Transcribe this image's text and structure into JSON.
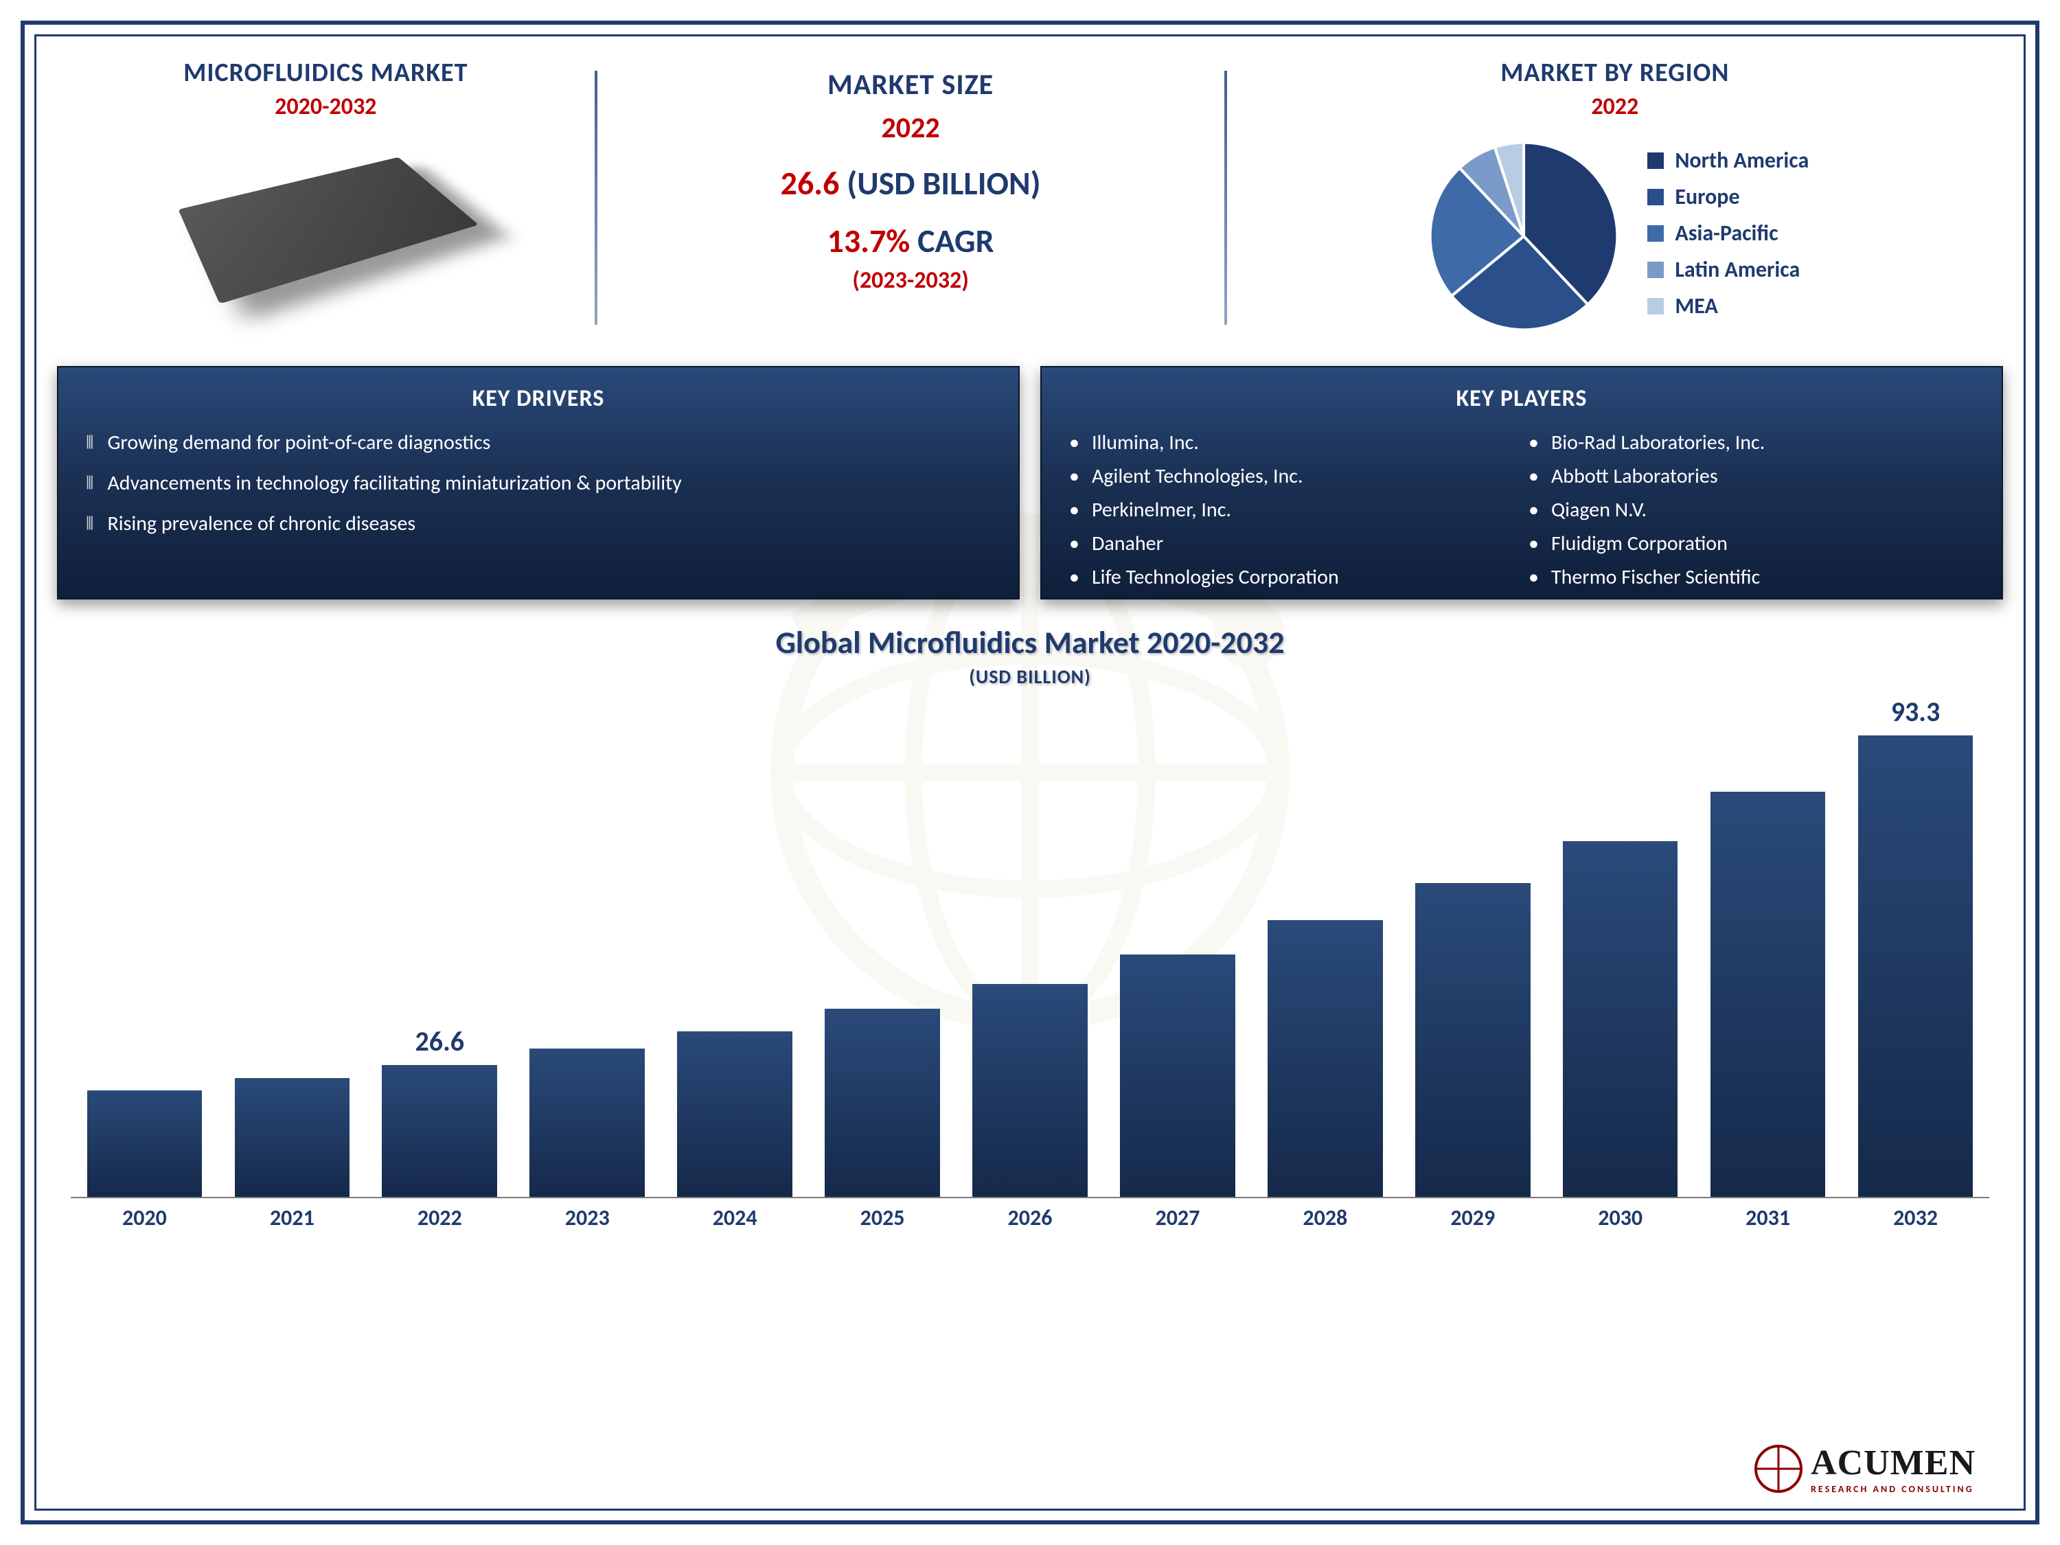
{
  "header": {
    "left_title": "MICROFLUIDICS MARKET",
    "left_sub": "2020-2032",
    "mid_title": "MARKET SIZE",
    "mid_year": "2022",
    "mid_value_red": "26.6",
    "mid_value_rest": " (USD BILLION)",
    "mid_cagr_red": "13.7%",
    "mid_cagr_rest": " CAGR",
    "mid_period": "(2023-2032)",
    "right_title": "MARKET BY REGION",
    "right_sub": "2022"
  },
  "pie": {
    "type": "pie",
    "slices": [
      {
        "label": "North America",
        "value": 38,
        "color": "#1f3a6e"
      },
      {
        "label": "Europe",
        "value": 26,
        "color": "#2a4f8a"
      },
      {
        "label": "Asia-Pacific",
        "value": 24,
        "color": "#3f6aa8"
      },
      {
        "label": "Latin America",
        "value": 7,
        "color": "#7a9bc9"
      },
      {
        "label": "MEA",
        "value": 5,
        "color": "#b8cce4"
      }
    ],
    "stroke": "#ffffff",
    "stroke_width": 3,
    "legend_fontsize": 32
  },
  "drivers": {
    "title": "KEY DRIVERS",
    "items": [
      "Growing demand for point-of-care diagnostics",
      "Advancements in technology facilitating miniaturization & portability",
      "Rising prevalence of chronic diseases"
    ]
  },
  "players": {
    "title": "KEY PLAYERS",
    "col1": [
      "Illumina, Inc.",
      "Agilent Technologies, Inc.",
      "Perkinelmer, Inc.",
      "Danaher",
      "Life Technologies Corporation"
    ],
    "col2": [
      "Bio-Rad Laboratories, Inc.",
      "Abbott Laboratories",
      "Qiagen N.V.",
      "Fluidigm Corporation",
      "Thermo Fischer Scientific"
    ]
  },
  "chart": {
    "type": "bar",
    "title": "Global Microfluidics Market 2020-2032",
    "subtitle": "(USD BILLION)",
    "categories": [
      "2020",
      "2021",
      "2022",
      "2023",
      "2024",
      "2025",
      "2026",
      "2027",
      "2028",
      "2029",
      "2030",
      "2031",
      "2032"
    ],
    "values": [
      21.5,
      24,
      26.6,
      30,
      33.5,
      38,
      43,
      49,
      56,
      63.5,
      72,
      82,
      93.3
    ],
    "ylim": [
      0,
      100
    ],
    "bar_color_gradient": [
      "#2a4a7a",
      "#15294a"
    ],
    "bar_width": 0.78,
    "axis_color": "#7a7a7a",
    "label_fontsize": 32,
    "value_label_fontsize": 40,
    "value_label_color": "#1f3a6e",
    "title_fontsize": 46,
    "subtitle_fontsize": 28,
    "highlighted_labels": {
      "2": "26.6",
      "12": "93.3"
    }
  },
  "logo": {
    "name": "ACUMEN",
    "tagline": "RESEARCH AND CONSULTING"
  },
  "colors": {
    "primary": "#1f3a6e",
    "accent_red": "#c00000",
    "box_bg_top": "#2a4a7a",
    "box_bg_bot": "#0f1f3a",
    "background": "#ffffff"
  }
}
